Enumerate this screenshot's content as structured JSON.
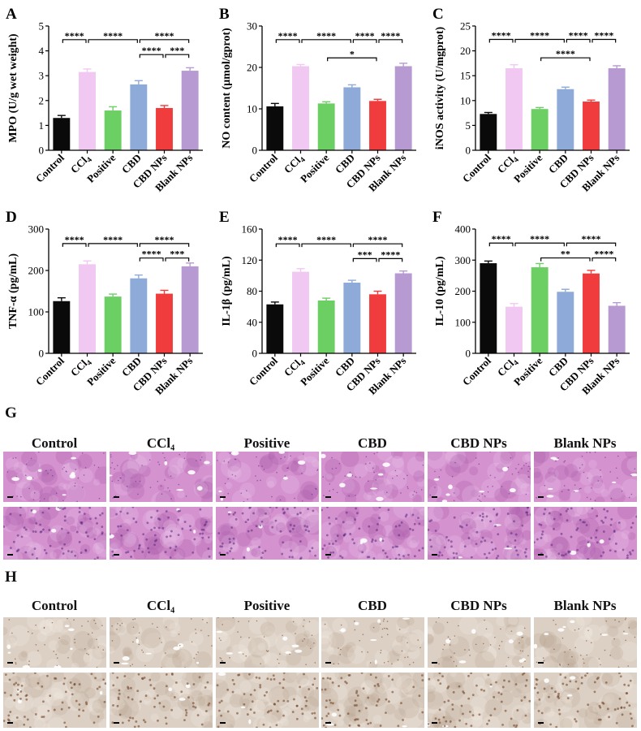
{
  "groups": [
    "Control",
    "CCl4",
    "Positive",
    "CBD",
    "CBD NPs",
    "Blank NPs"
  ],
  "group_display": [
    "Control",
    "CCl₄",
    "Positive",
    "CBD",
    "CBD NPs",
    "Blank NPs"
  ],
  "bar_colors": [
    "#0a0a0a",
    "#f0c8f2",
    "#6ccf64",
    "#8eaad8",
    "#f03c3c",
    "#b79ad2"
  ],
  "chart_data": [
    {
      "panel": "A",
      "type": "bar",
      "ylabel": "MPO (U/g wet weight)",
      "ylim": [
        0,
        5
      ],
      "yticks": [
        0,
        1,
        2,
        3,
        4,
        5
      ],
      "categories": [
        "Control",
        "CCl4",
        "Positive",
        "CBD",
        "CBD NPs",
        "Blank NPs"
      ],
      "values": [
        1.3,
        3.15,
        1.6,
        2.65,
        1.7,
        3.2
      ],
      "errors": [
        0.1,
        0.12,
        0.15,
        0.15,
        0.1,
        0.12
      ],
      "comparisons": [
        {
          "from": 0,
          "to": 1,
          "level": 4.45,
          "label": "****"
        },
        {
          "from": 1,
          "to": 3,
          "level": 4.45,
          "label": "****"
        },
        {
          "from": 3,
          "to": 5,
          "level": 4.45,
          "label": "****"
        },
        {
          "from": 3,
          "to": 4,
          "level": 3.85,
          "label": "****"
        },
        {
          "from": 4,
          "to": 5,
          "level": 3.85,
          "label": "***"
        }
      ]
    },
    {
      "panel": "B",
      "type": "bar",
      "ylabel": "NO content (μmol/gprot)",
      "ylim": [
        0,
        30
      ],
      "yticks": [
        0,
        10,
        20,
        30
      ],
      "categories": [
        "Control",
        "CCl4",
        "Positive",
        "CBD",
        "CBD NPs",
        "Blank NPs"
      ],
      "values": [
        10.6,
        20.3,
        11.3,
        15.2,
        11.9,
        20.3
      ],
      "errors": [
        0.7,
        0.4,
        0.4,
        0.6,
        0.4,
        0.7
      ],
      "comparisons": [
        {
          "from": 0,
          "to": 1,
          "level": 26.7,
          "label": "****"
        },
        {
          "from": 1,
          "to": 3,
          "level": 26.7,
          "label": "****"
        },
        {
          "from": 3,
          "to": 4,
          "level": 26.7,
          "label": "****"
        },
        {
          "from": 4,
          "to": 5,
          "level": 26.7,
          "label": "****"
        },
        {
          "from": 2,
          "to": 4,
          "level": 22.3,
          "label": "*"
        }
      ]
    },
    {
      "panel": "C",
      "type": "bar",
      "ylabel": "iNOS activity (U/mgprot)",
      "ylim": [
        0,
        25
      ],
      "yticks": [
        0,
        5,
        10,
        15,
        20,
        25
      ],
      "categories": [
        "Control",
        "CCl4",
        "Positive",
        "CBD",
        "CBD NPs",
        "Blank NPs"
      ],
      "values": [
        7.3,
        16.5,
        8.3,
        12.3,
        9.8,
        16.5
      ],
      "errors": [
        0.3,
        0.7,
        0.3,
        0.4,
        0.3,
        0.5
      ],
      "comparisons": [
        {
          "from": 0,
          "to": 1,
          "level": 22.3,
          "label": "****"
        },
        {
          "from": 1,
          "to": 3,
          "level": 22.3,
          "label": "****"
        },
        {
          "from": 3,
          "to": 4,
          "level": 22.3,
          "label": "****"
        },
        {
          "from": 4,
          "to": 5,
          "level": 22.3,
          "label": "****"
        },
        {
          "from": 2,
          "to": 4,
          "level": 18.6,
          "label": "****"
        }
      ]
    },
    {
      "panel": "D",
      "type": "bar",
      "ylabel": "TNF-α (pg/mL)",
      "ylim": [
        0,
        300
      ],
      "yticks": [
        0,
        100,
        200,
        300
      ],
      "categories": [
        "Control",
        "CCl4",
        "Positive",
        "CBD",
        "CBD NPs",
        "Blank NPs"
      ],
      "values": [
        126,
        215,
        137,
        181,
        144,
        210
      ],
      "errors": [
        8,
        8,
        6,
        8,
        8,
        8
      ],
      "comparisons": [
        {
          "from": 0,
          "to": 1,
          "level": 265,
          "label": "****"
        },
        {
          "from": 1,
          "to": 3,
          "level": 265,
          "label": "****"
        },
        {
          "from": 3,
          "to": 5,
          "level": 265,
          "label": "****"
        },
        {
          "from": 3,
          "to": 4,
          "level": 230,
          "label": "****"
        },
        {
          "from": 4,
          "to": 5,
          "level": 230,
          "label": "***"
        }
      ]
    },
    {
      "panel": "E",
      "type": "bar",
      "ylabel": "IL-1β (pg/mL)",
      "ylim": [
        0,
        160
      ],
      "yticks": [
        0,
        40,
        80,
        120,
        160
      ],
      "categories": [
        "Control",
        "CCl4",
        "Positive",
        "CBD",
        "CBD NPs",
        "Blank NPs"
      ],
      "values": [
        63,
        105,
        68,
        91,
        76,
        103
      ],
      "errors": [
        3,
        4,
        3,
        3,
        4,
        3
      ],
      "comparisons": [
        {
          "from": 0,
          "to": 1,
          "level": 141,
          "label": "****"
        },
        {
          "from": 1,
          "to": 3,
          "level": 141,
          "label": "****"
        },
        {
          "from": 3,
          "to": 5,
          "level": 141,
          "label": "****"
        },
        {
          "from": 3,
          "to": 4,
          "level": 122,
          "label": "***"
        },
        {
          "from": 4,
          "to": 5,
          "level": 122,
          "label": "****"
        }
      ]
    },
    {
      "panel": "F",
      "type": "bar",
      "ylabel": "IL-10 (pg/mL)",
      "ylim": [
        0,
        400
      ],
      "yticks": [
        0,
        100,
        200,
        300,
        400
      ],
      "categories": [
        "Control",
        "CCl4",
        "Positive",
        "CBD",
        "CBD NPs",
        "Blank NPs"
      ],
      "values": [
        290,
        150,
        277,
        198,
        257,
        153
      ],
      "errors": [
        7,
        10,
        12,
        8,
        10,
        10
      ],
      "comparisons": [
        {
          "from": 0,
          "to": 1,
          "level": 355,
          "label": "****"
        },
        {
          "from": 1,
          "to": 3,
          "level": 355,
          "label": "****"
        },
        {
          "from": 3,
          "to": 5,
          "level": 355,
          "label": "****"
        },
        {
          "from": 2,
          "to": 4,
          "level": 307,
          "label": "**"
        },
        {
          "from": 4,
          "to": 5,
          "level": 307,
          "label": "****"
        }
      ]
    }
  ],
  "histology": [
    {
      "panel": "G",
      "stain": "H&E",
      "groups": [
        "Control",
        "CCl₄",
        "Positive",
        "CBD",
        "CBD NPs",
        "Blank NPs"
      ],
      "palette": {
        "base": "#d492cf",
        "light": "#ecc8ea",
        "dark": "#a857a8",
        "spot": "#5a2a80"
      }
    },
    {
      "panel": "H",
      "stain": "IHC",
      "groups": [
        "Control",
        "CCl₄",
        "Positive",
        "CBD",
        "CBD NPs",
        "Blank NPs"
      ],
      "palette": {
        "base": "#dcd0c4",
        "light": "#f2ebe2",
        "dark": "#b8a290",
        "spot": "#6b3a1e"
      }
    }
  ]
}
